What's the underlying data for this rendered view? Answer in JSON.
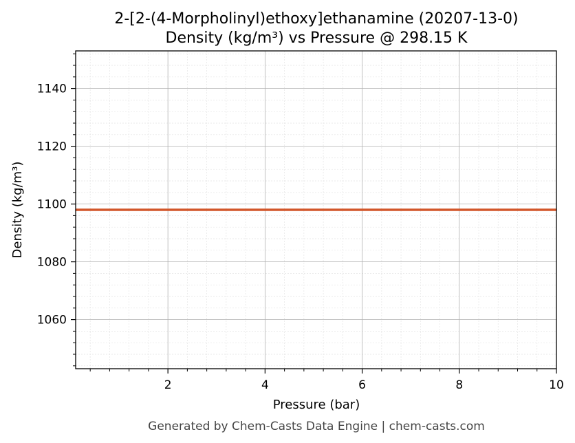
{
  "chart_data": {
    "type": "line",
    "title": "2-[2-(4-Morpholinyl)ethoxy]ethanamine (20207-13-0)",
    "subtitle": "Density (kg/m³) vs Pressure @ 298.15 K",
    "xlabel": "Pressure (bar)",
    "ylabel": "Density (kg/m³)",
    "xlim": [
      0.1,
      10
    ],
    "ylim": [
      1043,
      1153
    ],
    "x_ticks": [
      2,
      4,
      6,
      8,
      10
    ],
    "y_ticks": [
      1060,
      1080,
      1100,
      1120,
      1140
    ],
    "grid": true,
    "series": [
      {
        "x": [
          0.1,
          1,
          2,
          3,
          4,
          5,
          6,
          7,
          8,
          9,
          10
        ],
        "values": [
          1098,
          1098,
          1098,
          1098,
          1098,
          1098,
          1098,
          1098,
          1098,
          1098,
          1098
        ],
        "color": "#d2572b"
      }
    ]
  },
  "footer": "Generated by Chem-Casts Data Engine | chem-casts.com"
}
